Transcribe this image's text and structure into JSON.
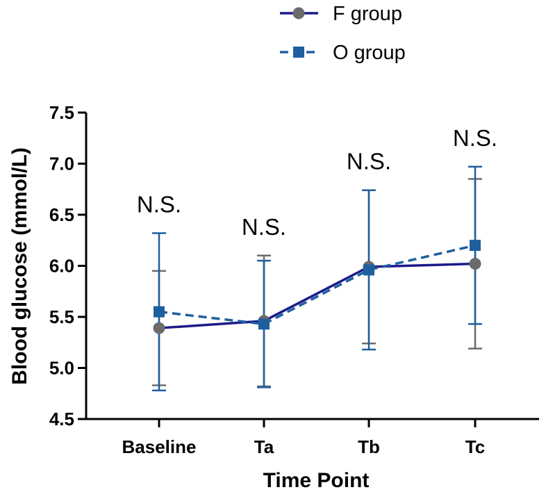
{
  "chart_data": {
    "type": "line",
    "title": "",
    "xlabel": "Time Point",
    "ylabel": "Blood glucose  (mmol/L)",
    "categories": [
      "Baseline",
      "Ta",
      "Tb",
      "Tc"
    ],
    "ylim": [
      4.5,
      7.5
    ],
    "yticks": [
      "4.5",
      "5.0",
      "5.5",
      "6.0",
      "6.5",
      "7.0",
      "7.5"
    ],
    "legend_position": "top-center",
    "grid": false,
    "series": [
      {
        "name": "F group",
        "values": [
          5.39,
          5.46,
          5.99,
          6.02
        ],
        "error_low": [
          4.83,
          4.82,
          5.24,
          5.19
        ],
        "error_high": [
          5.95,
          6.1,
          6.74,
          6.85
        ],
        "marker": "circle",
        "line_style": "solid",
        "line_color": "#1a1a8c",
        "marker_color": "#6b6b6b",
        "error_color": "#6b6b6b"
      },
      {
        "name": "O group",
        "values": [
          5.55,
          5.43,
          5.96,
          6.2
        ],
        "error_low": [
          4.78,
          4.81,
          5.18,
          5.43
        ],
        "error_high": [
          6.32,
          6.05,
          6.74,
          6.97
        ],
        "marker": "square",
        "line_style": "dashed",
        "line_color": "#1f5f9e",
        "marker_color": "#1f5f9e",
        "error_color": "#1f5f9e"
      }
    ],
    "annotations": [
      {
        "category": "Baseline",
        "text": "N.S."
      },
      {
        "category": "Ta",
        "text": "N.S."
      },
      {
        "category": "Tb",
        "text": "N.S."
      },
      {
        "category": "Tc",
        "text": "N.S."
      }
    ]
  }
}
